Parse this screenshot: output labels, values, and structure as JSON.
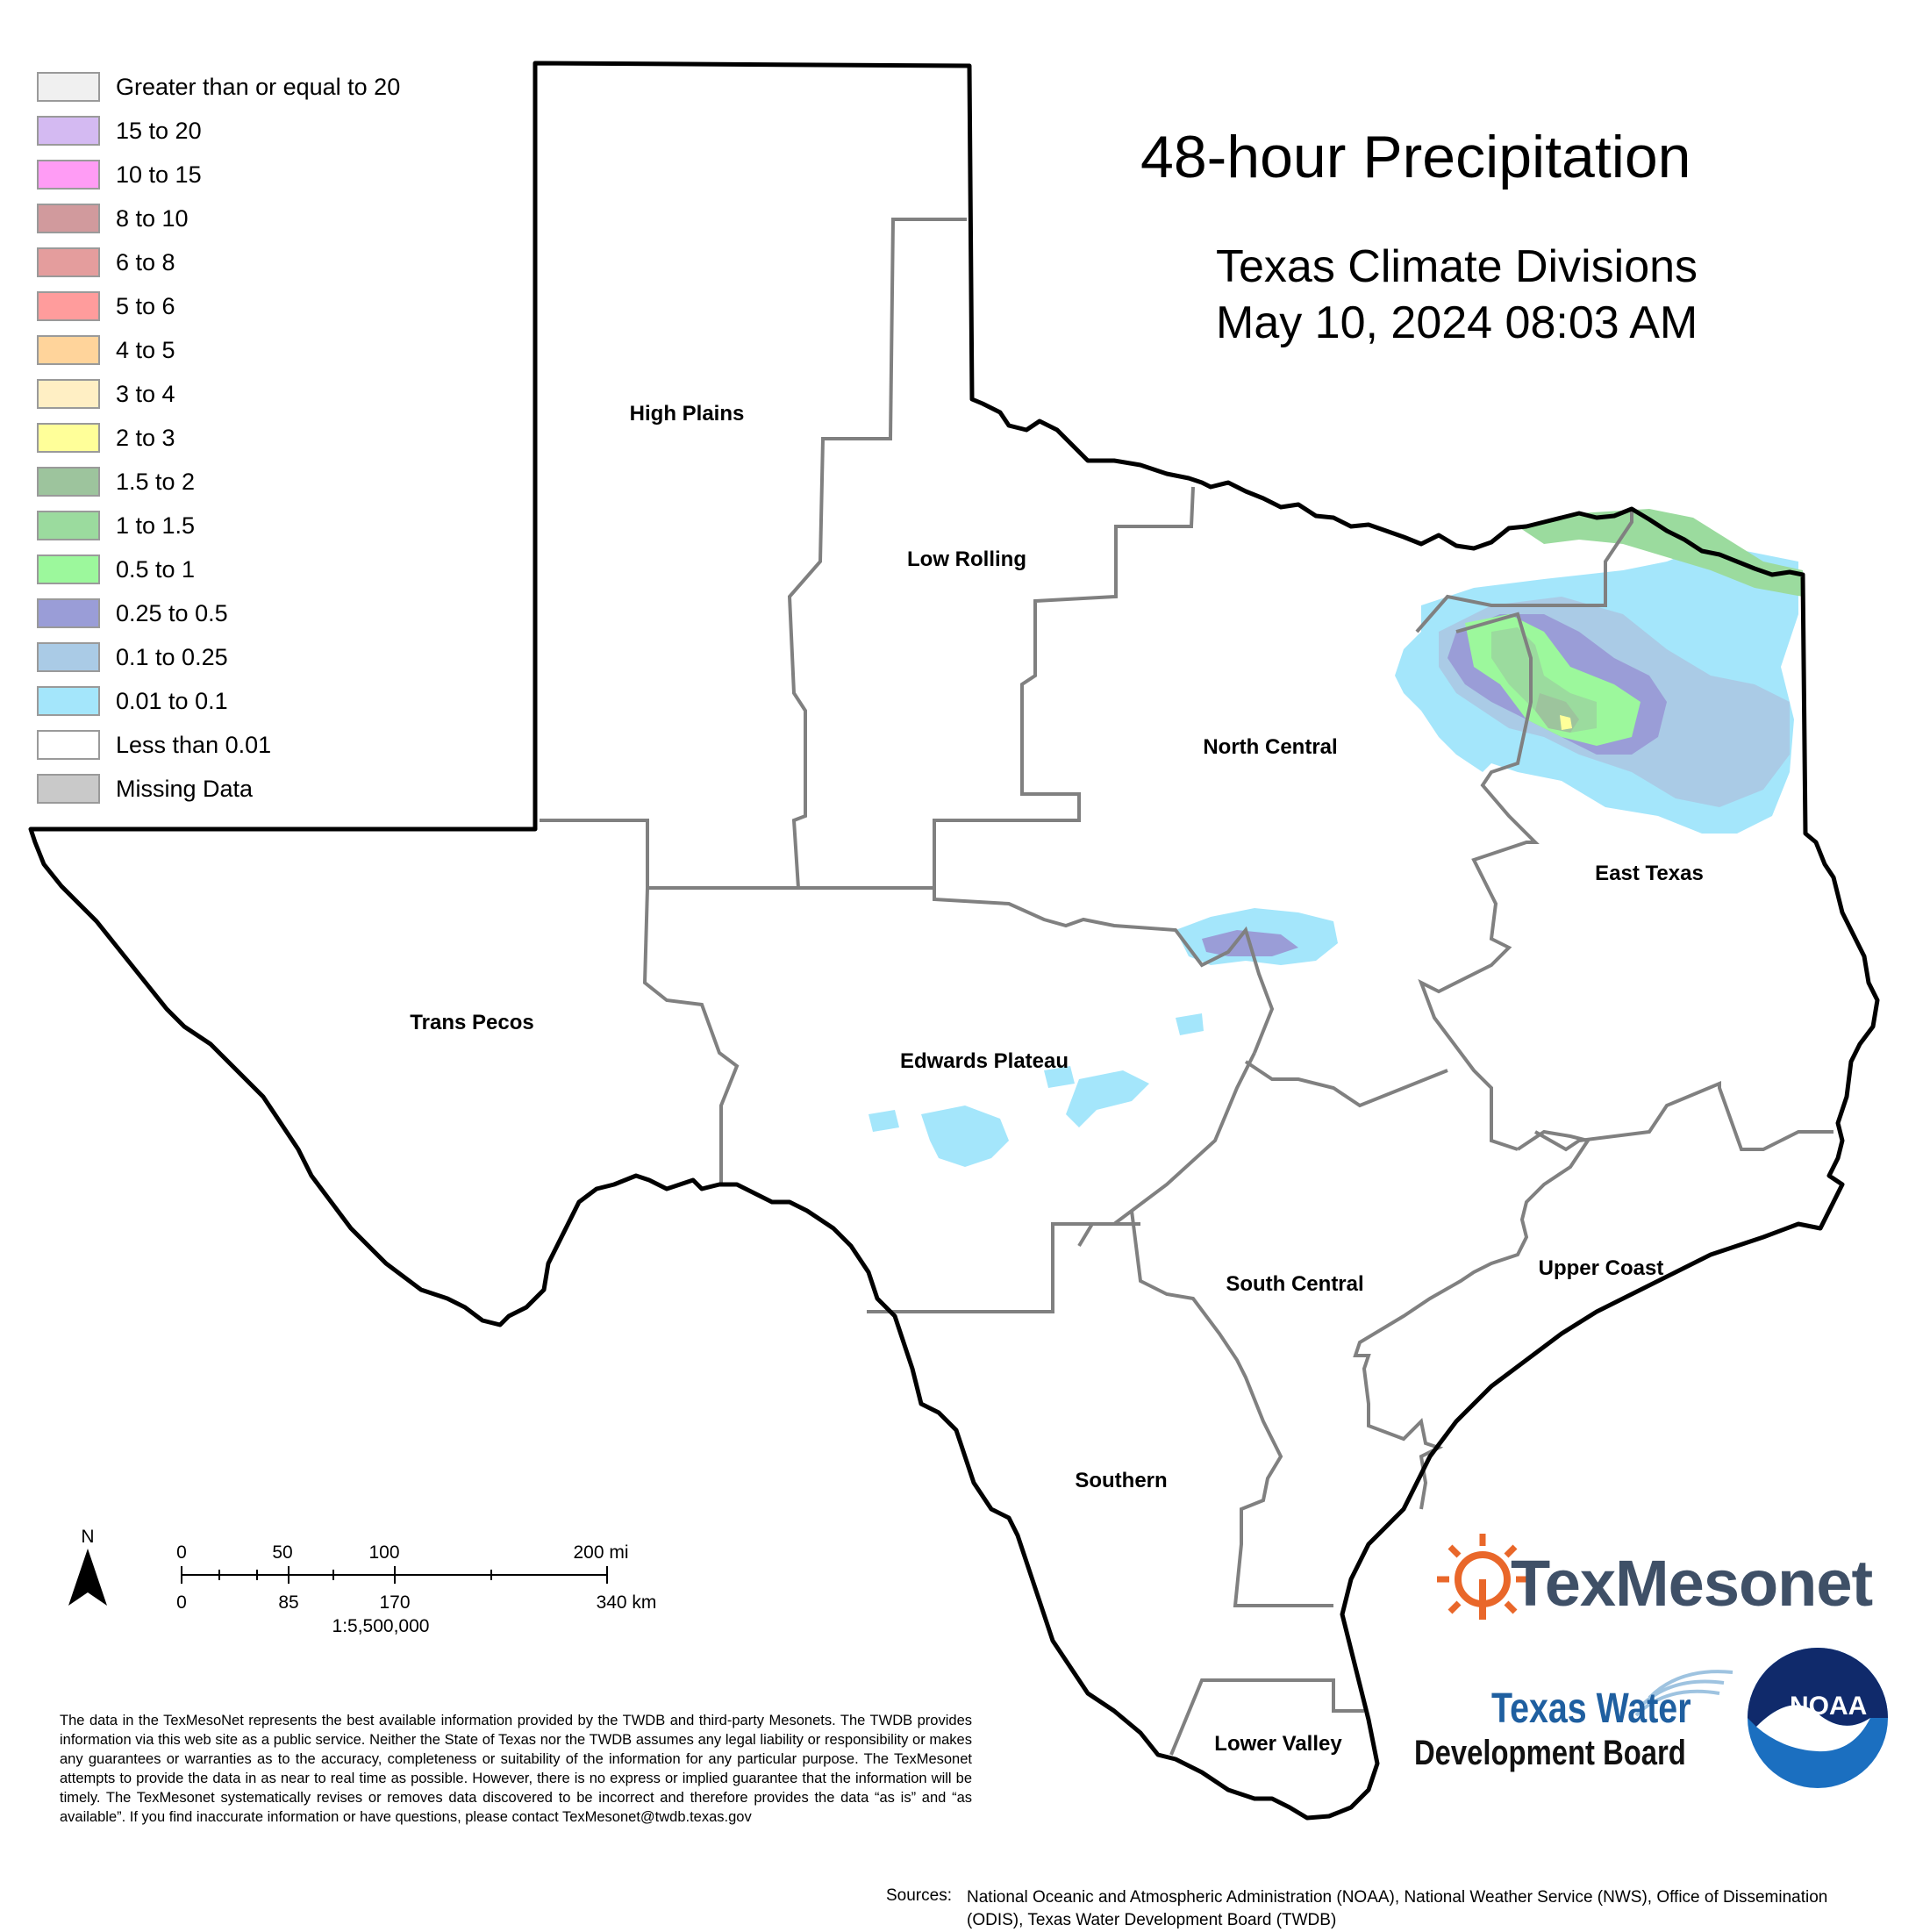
{
  "title": "48-hour Precipitation",
  "subtitle_line1": "Texas Climate Divisions",
  "subtitle_line2": "May 10, 2024 08:03 AM",
  "legend": [
    {
      "label": "Greater than or equal to 20",
      "color": "#f0f0f0"
    },
    {
      "label": "15 to 20",
      "color": "#d4baf2"
    },
    {
      "label": "10 to 15",
      "color": "#ff9cf5"
    },
    {
      "label": "8 to 10",
      "color": "#d19a9d"
    },
    {
      "label": "6 to 8",
      "color": "#e49d9d"
    },
    {
      "label": "5 to 6",
      "color": "#ff9c9c"
    },
    {
      "label": "4 to 5",
      "color": "#ffd49b"
    },
    {
      "label": "3 to 4",
      "color": "#ffefc4"
    },
    {
      "label": "2 to 3",
      "color": "#ffff99"
    },
    {
      "label": "1.5 to 2",
      "color": "#9dc49d"
    },
    {
      "label": "1 to 1.5",
      "color": "#9bdb9e"
    },
    {
      "label": "0.5 to 1",
      "color": "#9cf89c"
    },
    {
      "label": "0.25 to 0.5",
      "color": "#9a9dd7"
    },
    {
      "label": "0.1 to 0.25",
      "color": "#aacbe6"
    },
    {
      "label": "0.01 to 0.1",
      "color": "#a4e6fb"
    },
    {
      "label": "Less than 0.01",
      "color": "#ffffff"
    },
    {
      "label": "Missing Data",
      "color": "#c9c9c9"
    }
  ],
  "divisions": {
    "high_plains": "High Plains",
    "low_rolling": "Low Rolling",
    "north_central": "North Central",
    "east_texas": "East Texas",
    "trans_pecos": "Trans Pecos",
    "edwards_plateau": "Edwards Plateau",
    "south_central": "South Central",
    "upper_coast": "Upper Coast",
    "southern": "Southern",
    "lower_valley": "Lower Valley"
  },
  "scale": {
    "north": "N",
    "mi_ticks": [
      "0",
      "50",
      "100",
      "200 mi"
    ],
    "km_ticks": [
      "0",
      "85",
      "170",
      "340 km"
    ],
    "ratio": "1:5,500,000"
  },
  "disclaimer": "The data in the TexMesoNet represents the best available information provided by the TWDB and third-party Mesonets. The TWDB provides information via this web site as a public service. Neither the State of Texas nor the TWDB assumes any legal liability or responsibility or makes any guarantees or warranties as to the accuracy, completeness or suitability of the information for any particular purpose. The TexMesonet attempts to provide the data in as near to real time as possible. However, there is no express or implied guarantee that the information will be timely. The TexMesonet systematically revises or removes data discovered to be incorrect and therefore provides the data “as is” and “as available”. If you find inaccurate information or have questions, please contact TexMesonet@twdb.texas.gov",
  "sources_label": "Sources:",
  "sources_text": "National Oceanic and Atmospheric Administration (NOAA), National Weather Service (NWS), Office of Dissemination (ODIS), Texas Water Development Board (TWDB)",
  "logos": {
    "texmesonet": "TexMesonet",
    "twdb_line1": "Texas Water",
    "twdb_line2": "Development Board",
    "noaa": "NOAA"
  }
}
